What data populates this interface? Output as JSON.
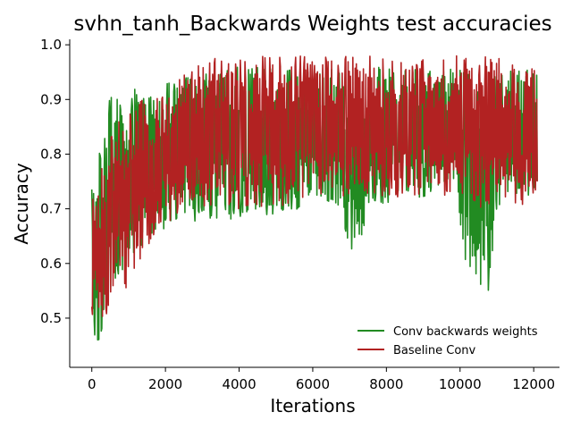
{
  "chart_data": {
    "type": "line",
    "title": "svhn_tanh_Backwards Weights test accuracies",
    "xlabel": "Iterations",
    "ylabel": "Accuracy",
    "xlim": [
      -600,
      12700
    ],
    "ylim": [
      0.41,
      1.01
    ],
    "xticks": [
      0,
      2000,
      4000,
      6000,
      8000,
      10000,
      12000
    ],
    "yticks": [
      0.5,
      0.6,
      0.7,
      0.8,
      0.9,
      1.0
    ],
    "xtick_labels": [
      "0",
      "2000",
      "4000",
      "6000",
      "8000",
      "10000",
      "12000"
    ],
    "ytick_labels": [
      "0.5",
      "0.6",
      "0.7",
      "0.8",
      "0.9",
      "1.0"
    ],
    "grid": false,
    "legend_position": "lower-right",
    "series": [
      {
        "name": "Conv backwards weights",
        "color": "#228b22",
        "envelope": {
          "x": [
            0,
            100,
            200,
            300,
            400,
            500,
            700,
            1000,
            1300,
            1600,
            2000,
            2500,
            3000,
            4000,
            5000,
            6000,
            6600,
            7000,
            7300,
            7600,
            8000,
            9000,
            9900,
            10100,
            10300,
            10500,
            10700,
            10900,
            11000,
            11300,
            11600,
            11900,
            12100
          ],
          "lower": [
            0.55,
            0.44,
            0.46,
            0.47,
            0.5,
            0.54,
            0.57,
            0.6,
            0.63,
            0.65,
            0.66,
            0.67,
            0.68,
            0.68,
            0.69,
            0.7,
            0.71,
            0.62,
            0.61,
            0.7,
            0.71,
            0.72,
            0.72,
            0.59,
            0.58,
            0.56,
            0.53,
            0.56,
            0.7,
            0.71,
            0.71,
            0.72,
            0.72
          ],
          "upper": [
            0.74,
            0.78,
            0.8,
            0.82,
            0.86,
            0.91,
            0.9,
            0.92,
            0.92,
            0.92,
            0.93,
            0.95,
            0.96,
            0.96,
            0.96,
            0.96,
            0.96,
            0.95,
            0.95,
            0.96,
            0.96,
            0.96,
            0.96,
            0.96,
            0.95,
            0.96,
            0.96,
            0.95,
            0.96,
            0.96,
            0.96,
            0.96,
            0.96
          ]
        }
      },
      {
        "name": "Baseline Conv",
        "color": "#b22222",
        "envelope": {
          "x": [
            0,
            100,
            200,
            300,
            400,
            500,
            700,
            1000,
            1300,
            1600,
            2000,
            2500,
            3000,
            4000,
            5000,
            6000,
            7000,
            8000,
            9000,
            10000,
            10500,
            11000,
            11500,
            12000,
            12100
          ],
          "lower": [
            0.5,
            0.5,
            0.46,
            0.46,
            0.5,
            0.52,
            0.54,
            0.56,
            0.6,
            0.64,
            0.67,
            0.7,
            0.7,
            0.7,
            0.7,
            0.72,
            0.72,
            0.72,
            0.72,
            0.72,
            0.7,
            0.7,
            0.7,
            0.72,
            0.74
          ],
          "upper": [
            0.72,
            0.75,
            0.77,
            0.8,
            0.82,
            0.84,
            0.86,
            0.88,
            0.9,
            0.91,
            0.92,
            0.95,
            0.98,
            0.98,
            0.98,
            0.98,
            0.98,
            0.98,
            0.98,
            0.98,
            0.98,
            0.98,
            0.98,
            0.98,
            0.96
          ]
        }
      }
    ]
  }
}
